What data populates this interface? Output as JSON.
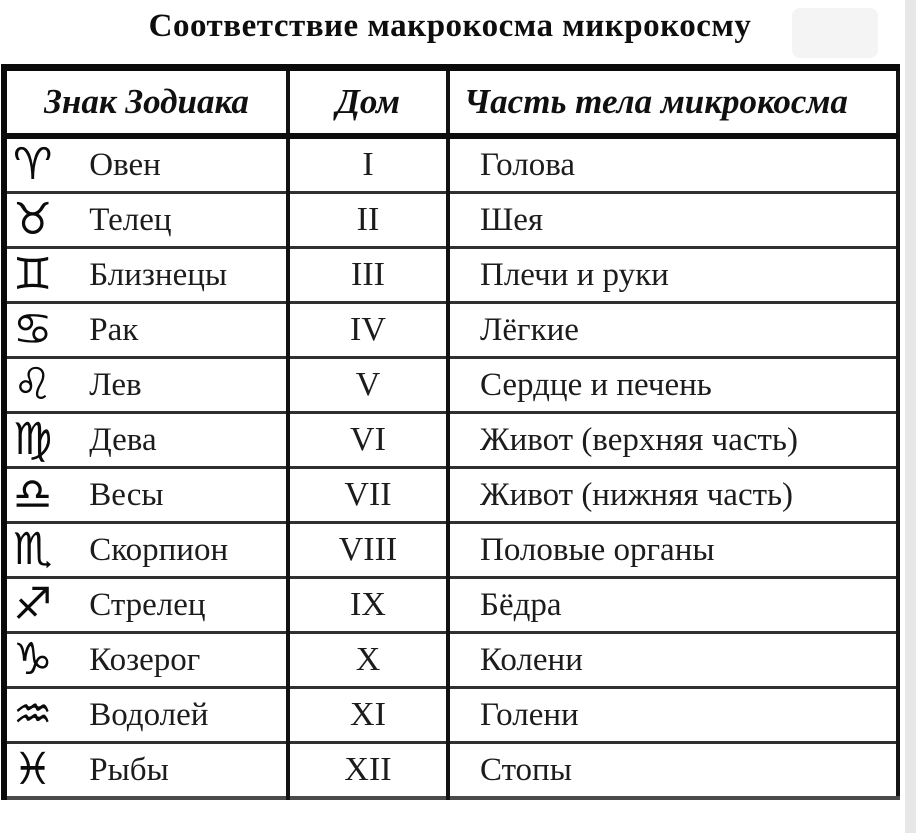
{
  "title": "Соответствие макрокосма микрокосму",
  "table": {
    "columns": [
      "Знак Зодиака",
      "Дом",
      "Часть тела микрокосма"
    ],
    "rows": [
      {
        "symbol": "♈",
        "icon": "aries-icon",
        "sign": "Овен",
        "house": "I",
        "body_part": "Голова"
      },
      {
        "symbol": "♉",
        "icon": "taurus-icon",
        "sign": "Телец",
        "house": "II",
        "body_part": "Шея"
      },
      {
        "symbol": "♊",
        "icon": "gemini-icon",
        "sign": "Близнецы",
        "house": "III",
        "body_part": "Плечи и руки"
      },
      {
        "symbol": "♋",
        "icon": "cancer-icon",
        "sign": "Рак",
        "house": "IV",
        "body_part": "Лёгкие"
      },
      {
        "symbol": "♌",
        "icon": "leo-icon",
        "sign": "Лев",
        "house": "V",
        "body_part": "Сердце и печень"
      },
      {
        "symbol": "♍",
        "icon": "virgo-icon",
        "sign": "Дева",
        "house": "VI",
        "body_part": "Живот (верхняя часть)"
      },
      {
        "symbol": "♎",
        "icon": "libra-icon",
        "sign": "Весы",
        "house": "VII",
        "body_part": "Живот (нижняя часть)"
      },
      {
        "symbol": "♏",
        "icon": "scorpio-icon",
        "sign": "Скорпион",
        "house": "VIII",
        "body_part": "Половые органы"
      },
      {
        "symbol": "♐",
        "icon": "sagittarius-icon",
        "sign": "Стрелец",
        "house": "IX",
        "body_part": "Бёдра"
      },
      {
        "symbol": "♑",
        "icon": "capricorn-icon",
        "sign": "Козерог",
        "house": "X",
        "body_part": "Колени"
      },
      {
        "symbol": "♒",
        "icon": "aquarius-icon",
        "sign": "Водолей",
        "house": "XI",
        "body_part": "Голени"
      },
      {
        "symbol": "♓",
        "icon": "pisces-icon",
        "sign": "Рыбы",
        "house": "XII",
        "body_part": "Стопы"
      }
    ]
  }
}
